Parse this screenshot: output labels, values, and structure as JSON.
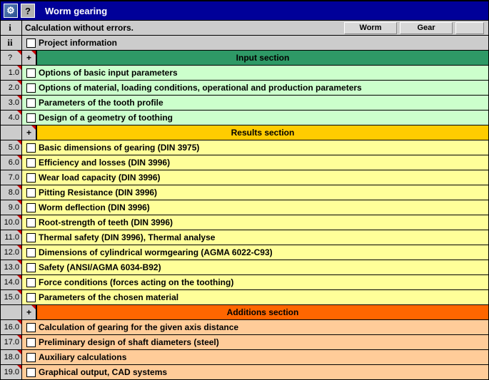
{
  "title": "Worm gearing",
  "status_row": {
    "num": "i",
    "text": "Calculation without errors."
  },
  "buttons": {
    "worm": "Worm",
    "gear": "Gear"
  },
  "project_row": {
    "num": "ii",
    "text": "Project information"
  },
  "sections": {
    "input": {
      "num": "?",
      "plus": "+",
      "header": "Input section",
      "header_bg": "#2e9966",
      "row_bg": "#ccffcc",
      "rows": [
        {
          "num": "1.0",
          "text": "Options of basic input parameters",
          "tri": true
        },
        {
          "num": "2.0",
          "text": "Options of material, loading conditions, operational and production parameters",
          "tri": true
        },
        {
          "num": "3.0",
          "text": "Parameters of the tooth profile",
          "tri": true
        },
        {
          "num": "4.0",
          "text": "Design of a geometry of toothing",
          "tri": true
        }
      ]
    },
    "results": {
      "num": "",
      "plus": "+",
      "header": "Results section",
      "header_bg": "#ffcc00",
      "row_bg": "#ffff99",
      "rows": [
        {
          "num": "5.0",
          "text": "Basic dimensions of gearing (DIN 3975)",
          "tri": true
        },
        {
          "num": "6.0",
          "text": "Efficiency and losses (DIN 3996)",
          "tri": true
        },
        {
          "num": "7.0",
          "text": "Wear load capacity (DIN 3996)",
          "tri": false
        },
        {
          "num": "8.0",
          "text": "Pitting Resistance (DIN 3996)",
          "tri": true
        },
        {
          "num": "9.0",
          "text": "Worm deflection (DIN 3996)",
          "tri": true
        },
        {
          "num": "10.0",
          "text": "Root-strength of teeth (DIN 3996)",
          "tri": true
        },
        {
          "num": "11.0",
          "text": "Thermal safety (DIN 3996), Thermal analyse",
          "tri": true
        },
        {
          "num": "12.0",
          "text": "Dimensions of cylindrical wormgearing (AGMA 6022-C93)",
          "tri": true
        },
        {
          "num": "13.0",
          "text": "Safety (ANSI/AGMA 6034-B92)",
          "tri": true
        },
        {
          "num": "14.0",
          "text": "Force conditions (forces acting on the toothing)",
          "tri": true
        },
        {
          "num": "15.0",
          "text": "Parameters of the chosen material",
          "tri": true
        }
      ]
    },
    "additions": {
      "num": "",
      "plus": "+",
      "header": "Additions section",
      "header_bg": "#ff6600",
      "row_bg": "#ffcc99",
      "rows": [
        {
          "num": "16.0",
          "text": "Calculation of gearing for the given axis distance",
          "tri": true
        },
        {
          "num": "17.0",
          "text": "Preliminary design of shaft diameters (steel)",
          "tri": true
        },
        {
          "num": "18.0",
          "text": "Auxiliary calculations",
          "tri": true
        },
        {
          "num": "19.0",
          "text": "Graphical output, CAD systems",
          "tri": true
        }
      ]
    }
  }
}
